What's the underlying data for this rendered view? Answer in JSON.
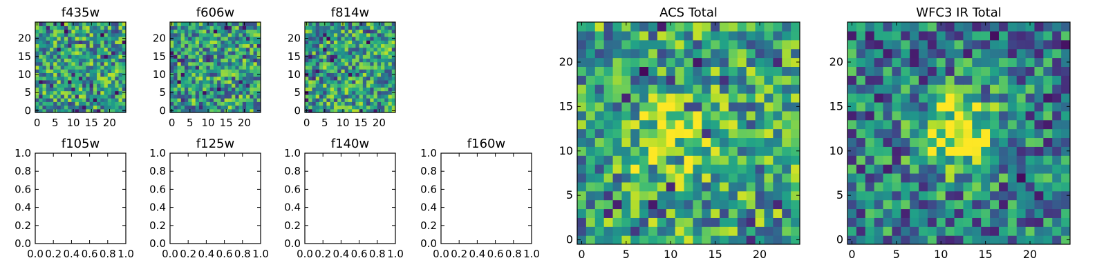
{
  "figure": {
    "colormap": "viridis",
    "colors": [
      "#440154",
      "#3b528b",
      "#21918c",
      "#2a9d8f",
      "#5ec962",
      "#a8db34",
      "#fde725"
    ]
  },
  "chart_data": [
    {
      "id": "f435w",
      "type": "heatmap",
      "title": "f435w",
      "xlim": [
        -0.5,
        24.5
      ],
      "ylim": [
        -0.5,
        24.5
      ],
      "xticks": [
        0,
        5,
        10,
        15,
        20
      ],
      "yticks": [
        0,
        5,
        10,
        15,
        20
      ],
      "pixels": 25,
      "has_image": true,
      "noise_seed": 11,
      "blob": null
    },
    {
      "id": "f606w",
      "type": "heatmap",
      "title": "f606w",
      "xlim": [
        -0.5,
        24.5
      ],
      "ylim": [
        -0.5,
        24.5
      ],
      "xticks": [
        0,
        5,
        10,
        15,
        20
      ],
      "yticks": [
        0,
        5,
        10,
        15,
        20
      ],
      "pixels": 25,
      "has_image": true,
      "noise_seed": 23,
      "blob": null
    },
    {
      "id": "f814w",
      "type": "heatmap",
      "title": "f814w",
      "xlim": [
        -0.5,
        24.5
      ],
      "ylim": [
        -0.5,
        24.5
      ],
      "xticks": [
        0,
        5,
        10,
        15,
        20
      ],
      "yticks": [
        0,
        5,
        10,
        15,
        20
      ],
      "pixels": 25,
      "has_image": true,
      "noise_seed": 37,
      "blob": null
    },
    {
      "id": "f105w",
      "type": "heatmap",
      "title": "f105w",
      "xlim": [
        0,
        1
      ],
      "ylim": [
        0,
        1
      ],
      "xticks": [
        "0.0",
        "0.2",
        "0.4",
        "0.6",
        "0.8",
        "1.0"
      ],
      "yticks": [
        "0.0",
        "0.2",
        "0.4",
        "0.6",
        "0.8",
        "1.0"
      ],
      "has_image": false
    },
    {
      "id": "f125w",
      "type": "heatmap",
      "title": "f125w",
      "xlim": [
        0,
        1
      ],
      "ylim": [
        0,
        1
      ],
      "xticks": [
        "0.0",
        "0.2",
        "0.4",
        "0.6",
        "0.8",
        "1.0"
      ],
      "yticks": [
        "0.0",
        "0.2",
        "0.4",
        "0.6",
        "0.8",
        "1.0"
      ],
      "has_image": false
    },
    {
      "id": "f140w",
      "type": "heatmap",
      "title": "f140w",
      "xlim": [
        0,
        1
      ],
      "ylim": [
        0,
        1
      ],
      "xticks": [
        "0.0",
        "0.2",
        "0.4",
        "0.6",
        "0.8",
        "1.0"
      ],
      "yticks": [
        "0.0",
        "0.2",
        "0.4",
        "0.6",
        "0.8",
        "1.0"
      ],
      "has_image": false
    },
    {
      "id": "f160w",
      "type": "heatmap",
      "title": "f160w",
      "xlim": [
        0,
        1
      ],
      "ylim": [
        0,
        1
      ],
      "xticks": [
        "0.0",
        "0.2",
        "0.4",
        "0.6",
        "0.8",
        "1.0"
      ],
      "yticks": [
        "0.0",
        "0.2",
        "0.4",
        "0.6",
        "0.8",
        "1.0"
      ],
      "has_image": false
    },
    {
      "id": "acs_total",
      "type": "heatmap",
      "title": "ACS Total",
      "xlim": [
        -0.5,
        24.5
      ],
      "ylim": [
        -0.5,
        24.5
      ],
      "xticks": [
        0,
        5,
        10,
        15,
        20
      ],
      "yticks": [
        0,
        5,
        10,
        15,
        20
      ],
      "pixels": 25,
      "has_image": true,
      "noise_seed": 51,
      "bias": 0.58,
      "blob": {
        "cx": 10,
        "cy": 11,
        "r": 3,
        "amp": 0.35
      }
    },
    {
      "id": "wfc3_ir_total",
      "type": "heatmap",
      "title": "WFC3 IR Total",
      "xlim": [
        -0.5,
        24.5
      ],
      "ylim": [
        -0.5,
        24.5
      ],
      "xticks": [
        0,
        5,
        10,
        15,
        20
      ],
      "yticks": [
        0,
        5,
        10,
        15,
        20
      ],
      "pixels": 25,
      "has_image": true,
      "noise_seed": 77,
      "bias": 0.42,
      "blob": {
        "cx": 12,
        "cy": 12,
        "r": 3,
        "amp": 0.6
      }
    }
  ]
}
